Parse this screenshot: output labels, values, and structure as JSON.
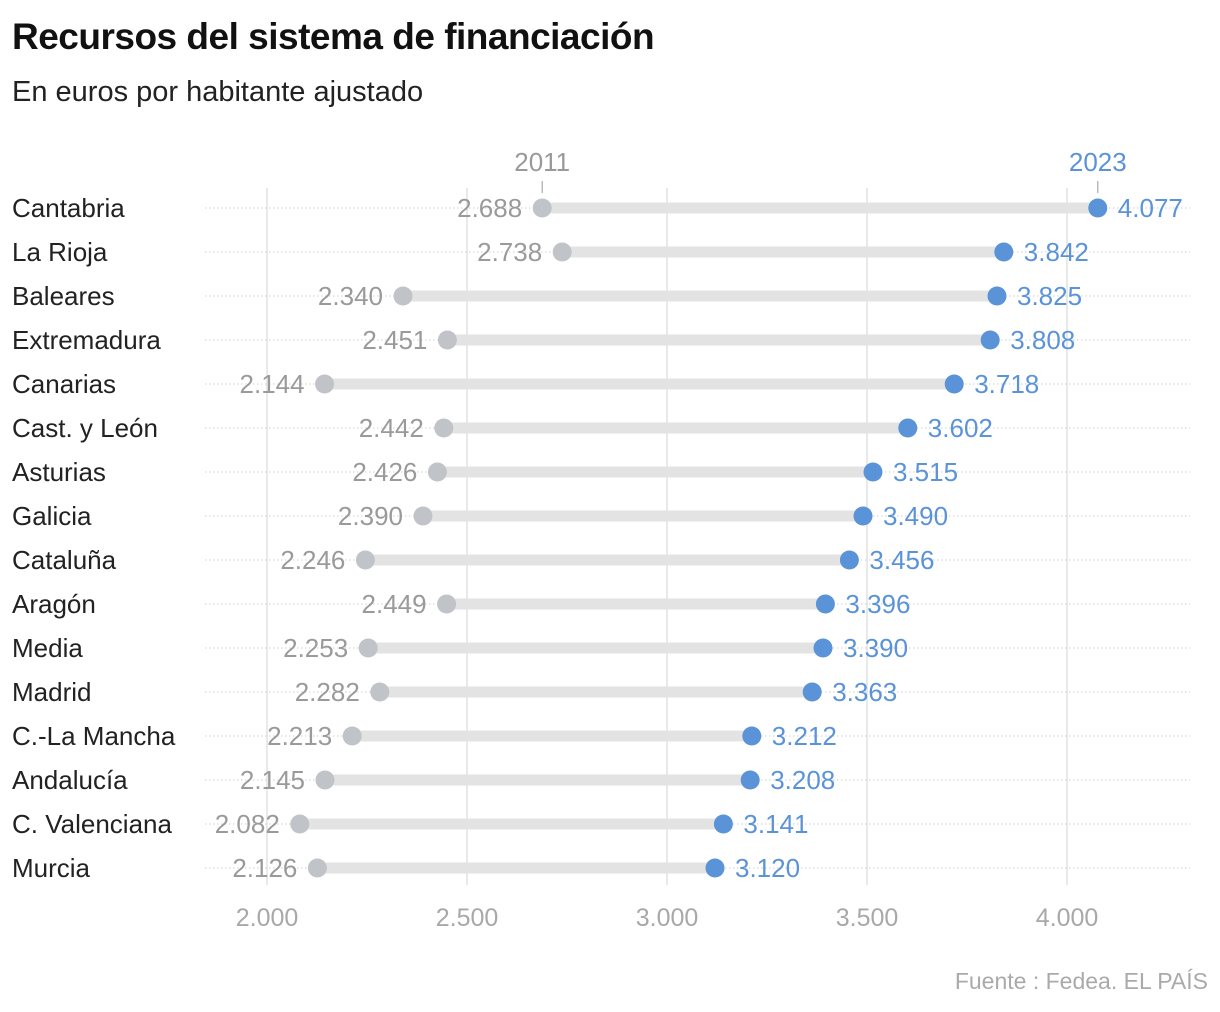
{
  "title": "Recursos del sistema de financiación",
  "subtitle": "En euros por habitante ajustado",
  "source": "Fuente : Fedea. EL PAÍS",
  "chart_data": {
    "type": "dumbbell",
    "title": "Recursos del sistema de financiación",
    "subtitle": "En euros por habitante ajustado",
    "xlim": [
      1850,
      4300
    ],
    "xticks": [
      2000,
      2500,
      3000,
      3500,
      4000
    ],
    "xtick_labels": [
      "2.000",
      "2.500",
      "3.000",
      "3.500",
      "4.000"
    ],
    "grid": true,
    "series": [
      {
        "name": "2011",
        "color": "#c0c4c8",
        "label_color": "#9a9a9a"
      },
      {
        "name": "2023",
        "color": "#5b93d8",
        "label_color": "#5b93d8"
      }
    ],
    "categories": [
      "Cantabria",
      "La Rioja",
      "Baleares",
      "Extremadura",
      "Canarias",
      "Cast. y León",
      "Asturias",
      "Galicia",
      "Cataluña",
      "Aragón",
      "Media",
      "Madrid",
      "C.-La Mancha",
      "Andalucía",
      "C. Valenciana",
      "Murcia"
    ],
    "values_2011": [
      2688,
      2738,
      2340,
      2451,
      2144,
      2442,
      2426,
      2390,
      2246,
      2449,
      2253,
      2282,
      2213,
      2145,
      2082,
      2126
    ],
    "values_2023": [
      4077,
      3842,
      3825,
      3808,
      3718,
      3602,
      3515,
      3490,
      3456,
      3396,
      3390,
      3363,
      3212,
      3208,
      3141,
      3120
    ]
  }
}
